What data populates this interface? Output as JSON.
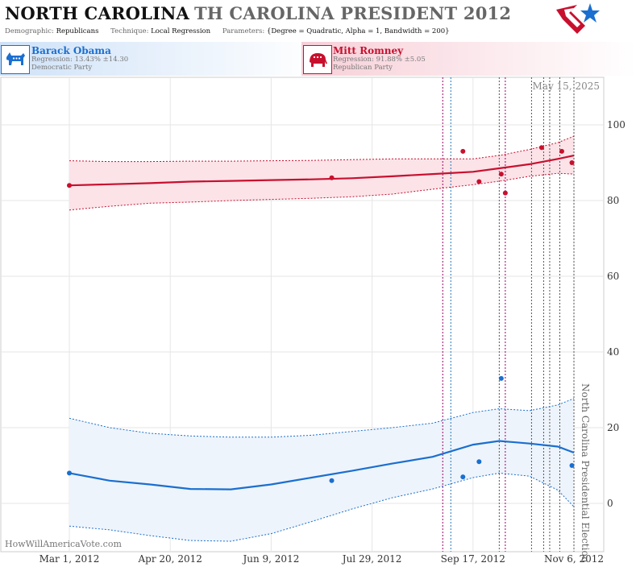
{
  "header": {
    "state": "NORTH CAROLINA",
    "race": "TH CAROLINA PRESIDENT 2012",
    "demographic_label": "Demographic:",
    "demographic": "Republicans",
    "technique_label": "Technique:",
    "technique": "Local Regression",
    "parameters_label": "Parameters:",
    "parameters": "{Degree = Quadratic, Alpha = 1, Bandwidth = 200}"
  },
  "candidates": [
    {
      "name": "Barack Obama",
      "regression": "Regression: 13.43% ±14.30",
      "party": "Democratic Party",
      "color": "#1a6fd0",
      "icon": "donkey-icon"
    },
    {
      "name": "Mitt Romney",
      "regression": "Regression: 91.88% ±5.05",
      "party": "Republican Party",
      "color": "#c8102e",
      "icon": "elephant-icon"
    }
  ],
  "watermark": "HowWillAmericaVote.com",
  "date_stamp": "May 15, 2025",
  "chart_data": {
    "type": "line",
    "x_ticks": [
      "Mar 1, 2012",
      "Apr 20, 2012",
      "Jun 9, 2012",
      "Jul 29, 2012",
      "Sep 17, 2012",
      "Nov 6, 2012"
    ],
    "x_tick_dates": [
      "2012-03-01",
      "2012-04-20",
      "2012-06-09",
      "2012-07-29",
      "2012-09-17",
      "2012-11-06"
    ],
    "xlim": [
      "2012-02-01",
      "2012-11-22"
    ],
    "ylim": [
      -12,
      113
    ],
    "y_ticks": [
      0,
      20,
      40,
      60,
      80,
      100
    ],
    "y_axis_side": "right",
    "grid": true,
    "event_label": "North Carolina Presidential Election",
    "event_date": "2012-11-06",
    "event_lines": [
      {
        "date": "2012-09-02",
        "color": "#990066"
      },
      {
        "date": "2012-09-06",
        "color": "#2277bb"
      },
      {
        "date": "2012-09-30",
        "color": "#555555"
      },
      {
        "date": "2012-10-03",
        "color": "#990066"
      },
      {
        "date": "2012-10-16",
        "color": "#555555"
      },
      {
        "date": "2012-10-22",
        "color": "#555555"
      },
      {
        "date": "2012-10-25",
        "color": "#555555"
      },
      {
        "date": "2012-10-30",
        "color": "#555555"
      },
      {
        "date": "2012-11-06",
        "color": "#555555"
      }
    ],
    "series": [
      {
        "name": "Mitt Romney",
        "color": "#c8102e",
        "band_color": "#fbe3e8",
        "line": [
          [
            "2012-03-01",
            84.0
          ],
          [
            "2012-03-21",
            84.3
          ],
          [
            "2012-04-10",
            84.6
          ],
          [
            "2012-04-30",
            85.0
          ],
          [
            "2012-05-20",
            85.2
          ],
          [
            "2012-06-09",
            85.4
          ],
          [
            "2012-06-29",
            85.6
          ],
          [
            "2012-07-19",
            85.9
          ],
          [
            "2012-08-08",
            86.4
          ],
          [
            "2012-08-28",
            87.0
          ],
          [
            "2012-09-17",
            87.6
          ],
          [
            "2012-10-01",
            88.6
          ],
          [
            "2012-10-15",
            89.6
          ],
          [
            "2012-10-29",
            91.0
          ],
          [
            "2012-11-06",
            91.9
          ]
        ],
        "upper": [
          [
            "2012-03-01",
            90.5
          ],
          [
            "2012-03-21",
            90.3
          ],
          [
            "2012-04-10",
            90.3
          ],
          [
            "2012-04-30",
            90.4
          ],
          [
            "2012-05-20",
            90.4
          ],
          [
            "2012-06-09",
            90.5
          ],
          [
            "2012-06-29",
            90.6
          ],
          [
            "2012-07-19",
            90.8
          ],
          [
            "2012-08-08",
            91.0
          ],
          [
            "2012-08-28",
            91.0
          ],
          [
            "2012-09-17",
            91.0
          ],
          [
            "2012-10-01",
            92.0
          ],
          [
            "2012-10-15",
            93.5
          ],
          [
            "2012-10-29",
            95.3
          ],
          [
            "2012-11-06",
            97.0
          ]
        ],
        "lower": [
          [
            "2012-03-01",
            77.5
          ],
          [
            "2012-03-21",
            78.5
          ],
          [
            "2012-04-10",
            79.3
          ],
          [
            "2012-04-30",
            79.6
          ],
          [
            "2012-05-20",
            80.0
          ],
          [
            "2012-06-09",
            80.3
          ],
          [
            "2012-06-29",
            80.6
          ],
          [
            "2012-07-19",
            81.0
          ],
          [
            "2012-08-08",
            81.7
          ],
          [
            "2012-08-28",
            83.0
          ],
          [
            "2012-09-17",
            84.2
          ],
          [
            "2012-10-01",
            85.2
          ],
          [
            "2012-10-15",
            86.4
          ],
          [
            "2012-10-29",
            87.2
          ],
          [
            "2012-11-06",
            87.0
          ]
        ],
        "points": [
          [
            "2012-03-01",
            84
          ],
          [
            "2012-07-09",
            86
          ],
          [
            "2012-09-12",
            93
          ],
          [
            "2012-09-20",
            85
          ],
          [
            "2012-10-01",
            87
          ],
          [
            "2012-10-03",
            82
          ],
          [
            "2012-10-21",
            94
          ],
          [
            "2012-10-31",
            93
          ],
          [
            "2012-11-05",
            90
          ]
        ]
      },
      {
        "name": "Barack Obama",
        "color": "#1a6fd0",
        "band_color": "#eef4fb",
        "line": [
          [
            "2012-03-01",
            8.0
          ],
          [
            "2012-03-21",
            6.0
          ],
          [
            "2012-04-10",
            5.0
          ],
          [
            "2012-04-30",
            3.8
          ],
          [
            "2012-05-20",
            3.7
          ],
          [
            "2012-06-09",
            5.0
          ],
          [
            "2012-06-29",
            6.8
          ],
          [
            "2012-07-19",
            8.6
          ],
          [
            "2012-08-08",
            10.5
          ],
          [
            "2012-08-28",
            12.3
          ],
          [
            "2012-09-17",
            15.5
          ],
          [
            "2012-09-30",
            16.5
          ],
          [
            "2012-10-15",
            15.8
          ],
          [
            "2012-10-29",
            15.0
          ],
          [
            "2012-11-06",
            13.4
          ]
        ],
        "upper": [
          [
            "2012-03-01",
            22.5
          ],
          [
            "2012-03-21",
            20.0
          ],
          [
            "2012-04-10",
            18.5
          ],
          [
            "2012-04-30",
            17.8
          ],
          [
            "2012-05-20",
            17.5
          ],
          [
            "2012-06-09",
            17.5
          ],
          [
            "2012-06-29",
            18.0
          ],
          [
            "2012-07-19",
            19.0
          ],
          [
            "2012-08-08",
            20.0
          ],
          [
            "2012-08-28",
            21.2
          ],
          [
            "2012-09-17",
            24.0
          ],
          [
            "2012-09-30",
            25.0
          ],
          [
            "2012-10-15",
            24.5
          ],
          [
            "2012-10-29",
            26.0
          ],
          [
            "2012-11-06",
            27.7
          ]
        ],
        "lower": [
          [
            "2012-03-01",
            -6.0
          ],
          [
            "2012-03-21",
            -7.0
          ],
          [
            "2012-04-10",
            -8.5
          ],
          [
            "2012-04-30",
            -9.8
          ],
          [
            "2012-05-20",
            -10.0
          ],
          [
            "2012-06-09",
            -8.0
          ],
          [
            "2012-06-29",
            -4.8
          ],
          [
            "2012-07-19",
            -1.5
          ],
          [
            "2012-08-08",
            1.5
          ],
          [
            "2012-08-28",
            3.8
          ],
          [
            "2012-09-17",
            6.8
          ],
          [
            "2012-09-30",
            8.0
          ],
          [
            "2012-10-15",
            7.2
          ],
          [
            "2012-10-29",
            3.5
          ],
          [
            "2012-11-06",
            -0.9
          ]
        ],
        "points": [
          [
            "2012-03-01",
            8
          ],
          [
            "2012-07-09",
            6
          ],
          [
            "2012-09-12",
            7
          ],
          [
            "2012-09-20",
            11
          ],
          [
            "2012-10-01",
            33
          ],
          [
            "2012-11-05",
            10
          ]
        ]
      }
    ]
  }
}
